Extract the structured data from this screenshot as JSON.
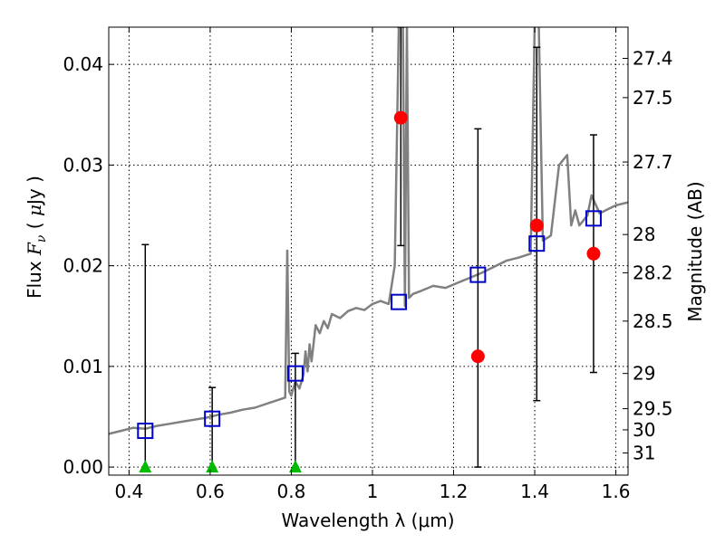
{
  "chart_data": {
    "type": "scatter",
    "xlabel": "Wavelength  λ (μm)",
    "ylabel": "Flux  F_ν  ( μJy )",
    "ylabel_parts": [
      "Flux  ",
      "F",
      "ν",
      "  ( ",
      "μ",
      "Jy )"
    ],
    "y2label": "Magnitude (AB)",
    "xlim": [
      0.35,
      1.63
    ],
    "ylim": [
      -0.0008,
      0.0437
    ],
    "grid": true,
    "x_ticks": [
      0.4,
      0.6,
      0.8,
      1.0,
      1.2,
      1.4,
      1.6
    ],
    "x_tick_labels": [
      "0.4",
      "0.6",
      "0.8",
      "1",
      "1.2",
      "1.4",
      "1.6"
    ],
    "y_ticks": [
      0.0,
      0.01,
      0.02,
      0.03,
      0.04
    ],
    "y_tick_labels": [
      "0.00",
      "0.01",
      "0.02",
      "0.03",
      "0.04"
    ],
    "y2_ticks": [
      {
        "flux": 0.0406,
        "label": "27.4"
      },
      {
        "flux": 0.0367,
        "label": "27.5"
      },
      {
        "flux": 0.0303,
        "label": "27.7"
      },
      {
        "flux": 0.0231,
        "label": "28"
      },
      {
        "flux": 0.0193,
        "label": "28.2"
      },
      {
        "flux": 0.0145,
        "label": "28.5"
      },
      {
        "flux": 0.0093,
        "label": "29"
      },
      {
        "flux": 0.0058,
        "label": "29.5"
      },
      {
        "flux": 0.0037,
        "label": "30"
      },
      {
        "flux": 0.0014,
        "label": "31"
      }
    ],
    "series": [
      {
        "type": "line",
        "color": "#808080",
        "x": [
          0.35,
          0.38,
          0.41,
          0.44,
          0.47,
          0.5,
          0.53,
          0.56,
          0.59,
          0.62,
          0.65,
          0.68,
          0.71,
          0.74,
          0.77,
          0.785,
          0.79,
          0.795,
          0.8,
          0.81,
          0.82,
          0.83,
          0.835,
          0.84,
          0.845,
          0.85,
          0.86,
          0.87,
          0.88,
          0.89,
          0.9,
          0.92,
          0.94,
          0.96,
          0.98,
          1.0,
          1.02,
          1.04,
          1.055,
          1.065,
          1.07,
          1.075,
          1.08,
          1.085,
          1.09,
          1.1,
          1.12,
          1.15,
          1.18,
          1.21,
          1.24,
          1.27,
          1.3,
          1.33,
          1.36,
          1.39,
          1.4,
          1.41,
          1.42,
          1.44,
          1.46,
          1.48,
          1.49,
          1.5,
          1.51,
          1.52,
          1.53,
          1.54,
          1.56,
          1.58,
          1.6,
          1.63
        ],
        "y": [
          0.0033,
          0.0036,
          0.0039,
          0.0038,
          0.0041,
          0.0043,
          0.0045,
          0.0047,
          0.0049,
          0.0052,
          0.0054,
          0.0057,
          0.0059,
          0.0063,
          0.0067,
          0.0069,
          0.0215,
          0.0075,
          0.0071,
          0.0085,
          0.0078,
          0.0092,
          0.0115,
          0.0095,
          0.0122,
          0.0105,
          0.0141,
          0.0133,
          0.0145,
          0.0138,
          0.0152,
          0.0148,
          0.0155,
          0.0158,
          0.0156,
          0.0162,
          0.0165,
          0.0162,
          0.02,
          0.044,
          0.044,
          0.044,
          0.016,
          0.044,
          0.0168,
          0.0172,
          0.0175,
          0.018,
          0.0178,
          0.0183,
          0.0188,
          0.0193,
          0.0199,
          0.0205,
          0.0208,
          0.0212,
          0.044,
          0.044,
          0.0225,
          0.023,
          0.03,
          0.031,
          0.024,
          0.0255,
          0.024,
          0.0245,
          0.025,
          0.027,
          0.0252,
          0.0256,
          0.026,
          0.0263
        ]
      },
      {
        "type": "errorbar",
        "color": "#000000",
        "x": [
          0.44,
          0.605,
          0.81,
          1.07,
          1.26,
          1.405,
          1.545
        ],
        "y": [
          0.0,
          0.0,
          0.0,
          0.0347,
          0.011,
          0.024,
          0.0212
        ],
        "low": [
          0.0,
          0.0,
          0.0,
          0.022,
          0.0,
          0.0066,
          0.0094
        ],
        "high": [
          0.0221,
          0.0079,
          0.0113,
          0.0437,
          0.0336,
          0.0417,
          0.033
        ]
      },
      {
        "type": "scatter",
        "marker": "circle",
        "color": "#ff0000",
        "x": [
          1.07,
          1.26,
          1.405,
          1.545
        ],
        "y": [
          0.0347,
          0.011,
          0.024,
          0.0212
        ]
      },
      {
        "type": "scatter",
        "marker": "triangle",
        "color": "#00bb00",
        "x": [
          0.44,
          0.605,
          0.81
        ],
        "y": [
          0.0,
          0.0,
          0.0
        ]
      },
      {
        "type": "scatter",
        "marker": "open-square",
        "color": "#0000cc",
        "x": [
          0.44,
          0.605,
          0.81,
          1.065,
          1.26,
          1.405,
          1.545
        ],
        "y": [
          0.0036,
          0.0048,
          0.0093,
          0.0164,
          0.0191,
          0.0222,
          0.0247
        ]
      }
    ]
  }
}
